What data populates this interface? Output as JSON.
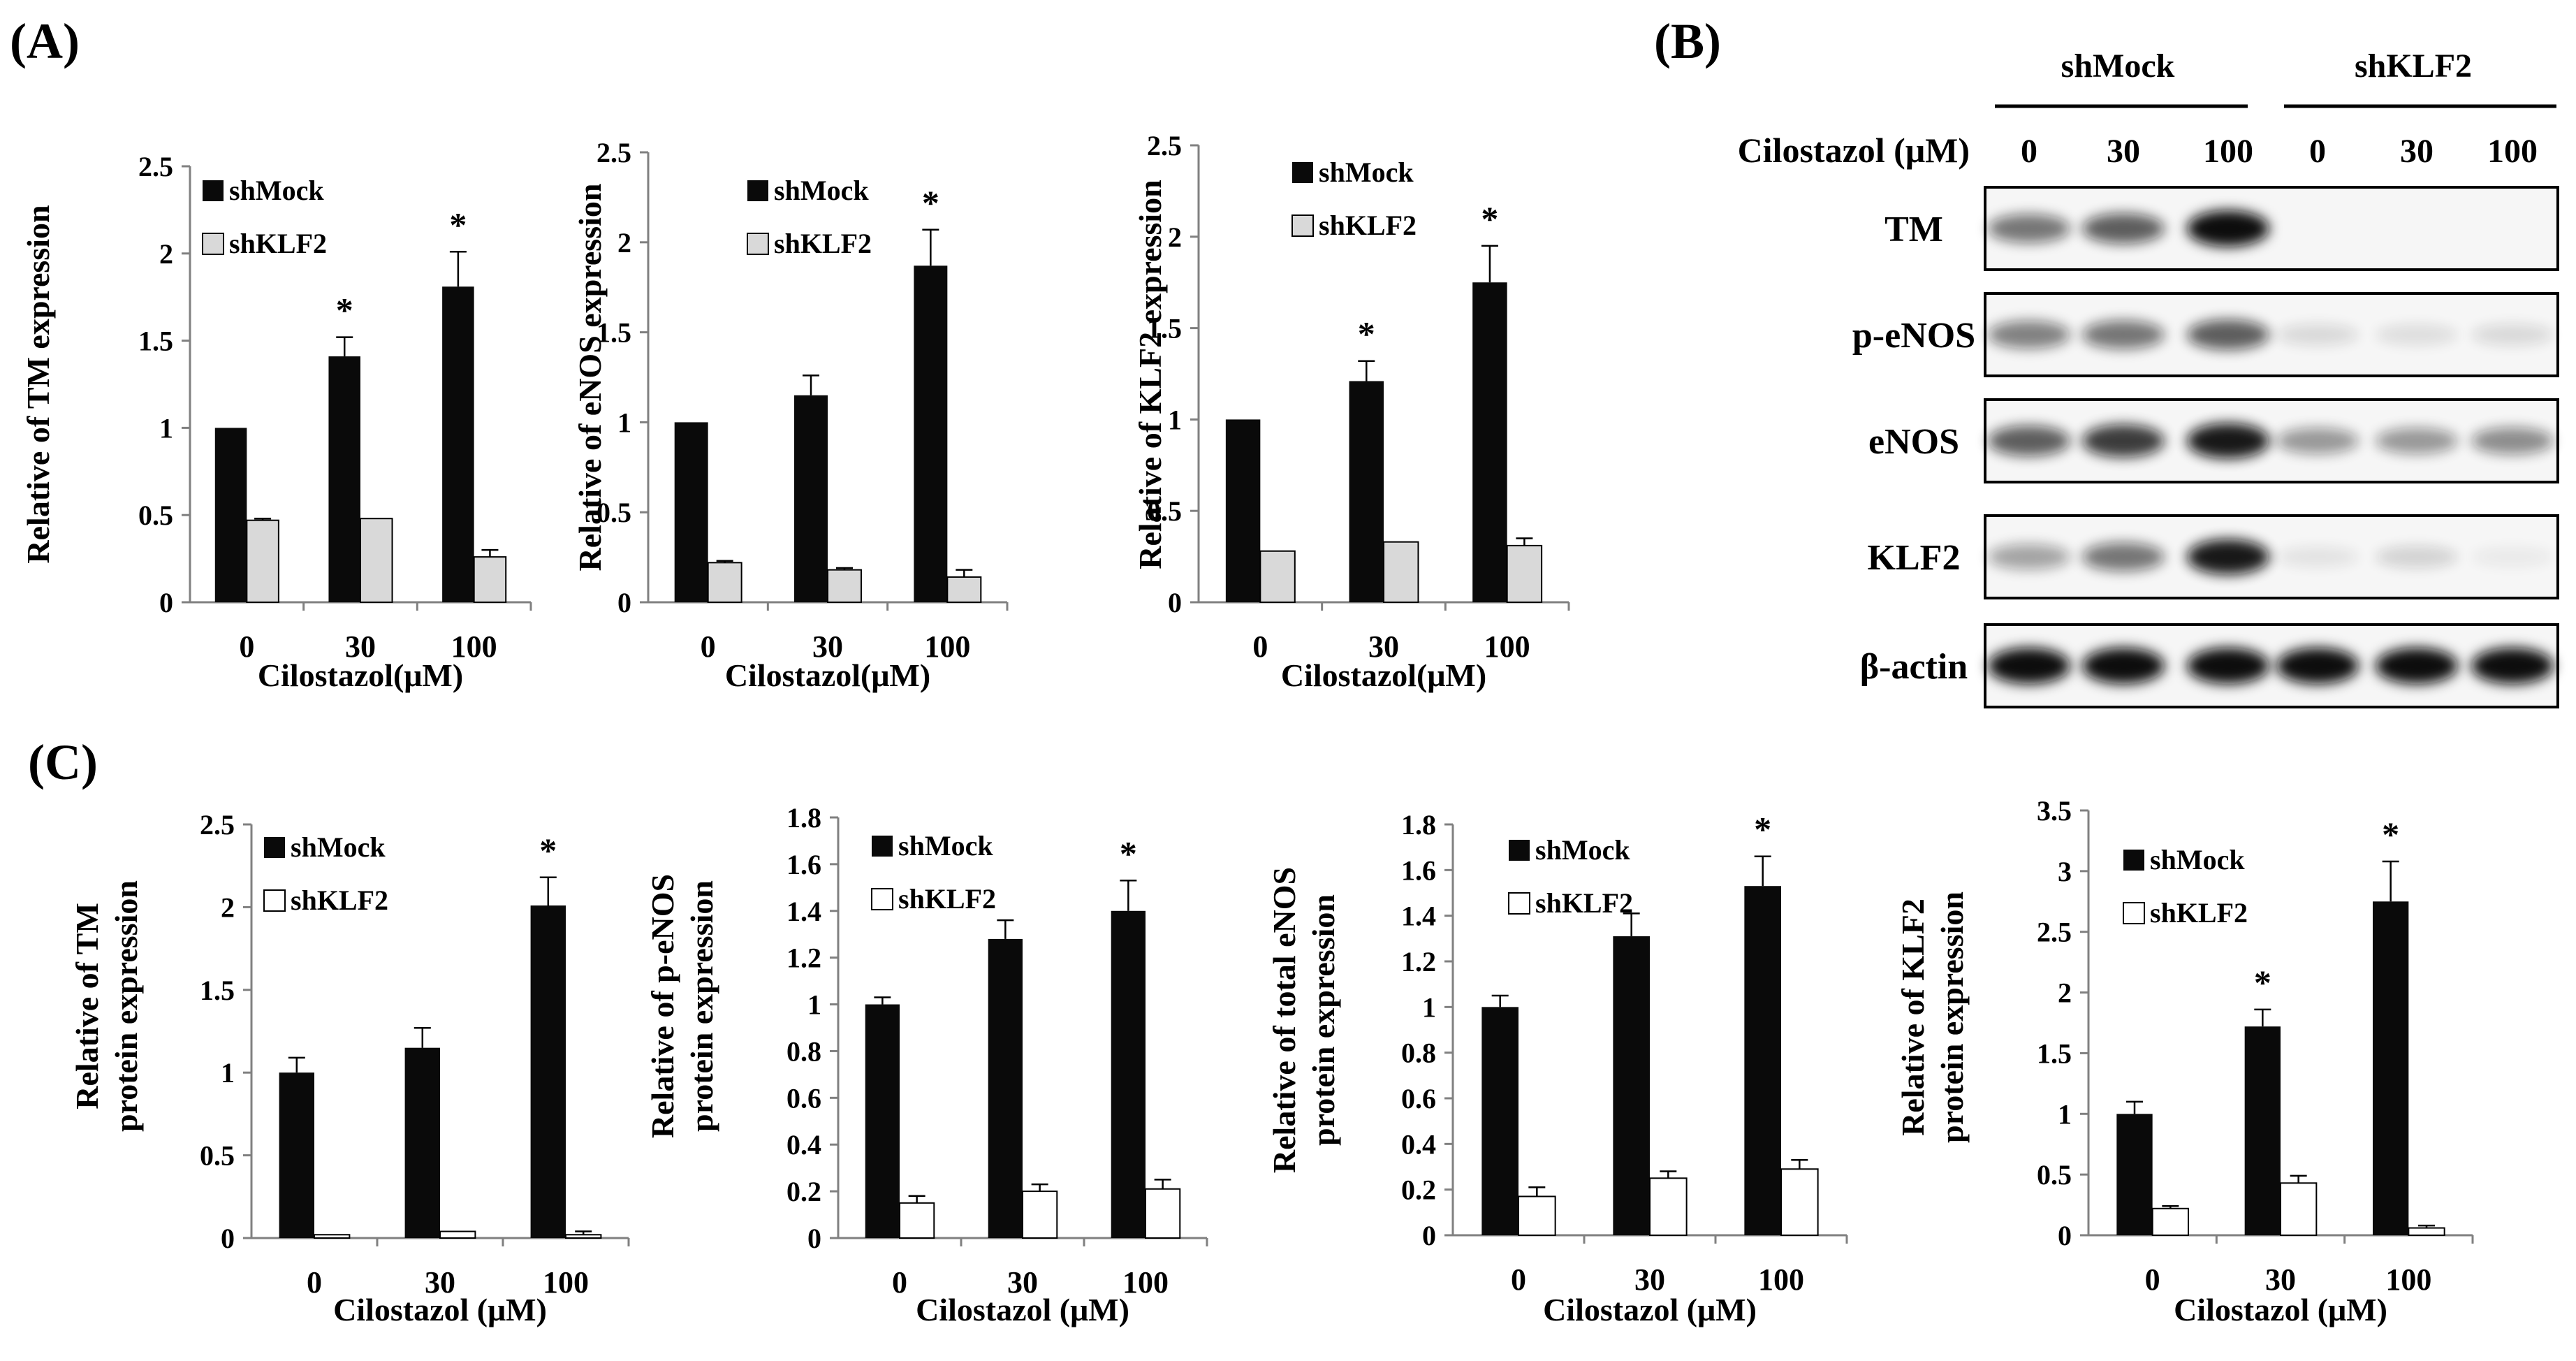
{
  "panels": {
    "A": "(A)",
    "B": "(B)",
    "C": "(C)"
  },
  "colors": {
    "shMock": "#0a0a0a",
    "shKLF2_A": "#d9d9d9",
    "shKLF2_C": "#ffffff",
    "axis": "#808080"
  },
  "chart_data": [
    {
      "type": "bar",
      "panel": "A",
      "categories": [
        "0",
        "30",
        "100"
      ],
      "series": [
        {
          "name": "shMock",
          "values": [
            1.0,
            1.41,
            1.81
          ],
          "errors": [
            0.0,
            0.11,
            0.2
          ]
        },
        {
          "name": "shKLF2",
          "values": [
            0.47,
            0.48,
            0.26
          ],
          "errors": [
            0.01,
            0.0,
            0.04
          ]
        }
      ],
      "stars": [
        null,
        "*",
        "*"
      ],
      "ylabel": "Relative of TM expression",
      "xlabel": "Cilostazol(μM)",
      "ylim": [
        0,
        2.5
      ],
      "ticks": [
        "0",
        "0.5",
        "1",
        "1.5",
        "2",
        "2.5"
      ],
      "legend": "top-left"
    },
    {
      "type": "bar",
      "panel": "A",
      "categories": [
        "0",
        "30",
        "100"
      ],
      "series": [
        {
          "name": "shMock",
          "values": [
            1.0,
            1.15,
            1.87
          ],
          "errors": [
            0.0,
            0.11,
            0.2
          ]
        },
        {
          "name": "shKLF2",
          "values": [
            0.22,
            0.18,
            0.14
          ],
          "errors": [
            0.01,
            0.01,
            0.04
          ]
        }
      ],
      "stars": [
        null,
        null,
        "*"
      ],
      "ylabel": "Relative of eNOS expression",
      "xlabel": "Cilostazol(μM)",
      "ylim": [
        0,
        2.5
      ],
      "ticks": [
        "0",
        "0.5",
        "1",
        "1.5",
        "2",
        "2.5"
      ],
      "legend": "top-left"
    },
    {
      "type": "bar",
      "panel": "A",
      "categories": [
        "0",
        "30",
        "100"
      ],
      "series": [
        {
          "name": "shMock",
          "values": [
            1.0,
            1.21,
            1.75
          ],
          "errors": [
            0.0,
            0.11,
            0.2
          ]
        },
        {
          "name": "shKLF2",
          "values": [
            0.28,
            0.33,
            0.31
          ],
          "errors": [
            0.0,
            0.0,
            0.04
          ]
        }
      ],
      "stars": [
        null,
        "*",
        "*"
      ],
      "ylabel": "Relative of KLF2 expression",
      "xlabel": "Cilostazol(μM)",
      "ylim": [
        0,
        2.5
      ],
      "ticks": [
        "0",
        "0.5",
        "1",
        "1.5",
        "2",
        "2.5"
      ],
      "legend": "top-left"
    },
    {
      "type": "bar",
      "panel": "C",
      "categories": [
        "0",
        "30",
        "100"
      ],
      "series": [
        {
          "name": "shMock",
          "values": [
            1.0,
            1.15,
            2.01
          ],
          "errors": [
            0.09,
            0.12,
            0.17
          ]
        },
        {
          "name": "shKLF2",
          "values": [
            0.02,
            0.04,
            0.02
          ],
          "errors": [
            0.0,
            0.0,
            0.02
          ]
        }
      ],
      "stars": [
        null,
        null,
        "*"
      ],
      "ylabel": "Relative of TM protein expression",
      "xlabel": "Cilostazol (μM)",
      "ylim": [
        0,
        2.5
      ],
      "ticks": [
        "0",
        "0.5",
        "1",
        "1.5",
        "2",
        "2.5"
      ],
      "legend": "top-left"
    },
    {
      "type": "bar",
      "panel": "C",
      "categories": [
        "0",
        "30",
        "100"
      ],
      "series": [
        {
          "name": "shMock",
          "values": [
            1.0,
            1.28,
            1.4
          ],
          "errors": [
            0.03,
            0.08,
            0.13
          ]
        },
        {
          "name": "shKLF2",
          "values": [
            0.15,
            0.2,
            0.21
          ],
          "errors": [
            0.03,
            0.03,
            0.04
          ]
        }
      ],
      "stars": [
        null,
        null,
        "*"
      ],
      "ylabel": "Relative of p-eNOS protein expression",
      "xlabel": "Cilostazol (μM)",
      "ylim": [
        0,
        1.8
      ],
      "ticks": [
        "0",
        "0.2",
        "0.4",
        "0.6",
        "0.8",
        "1",
        "1.2",
        "1.4",
        "1.6",
        "1.8"
      ],
      "legend": "top-left"
    },
    {
      "type": "bar",
      "panel": "C",
      "categories": [
        "0",
        "30",
        "100"
      ],
      "series": [
        {
          "name": "shMock",
          "values": [
            1.0,
            1.31,
            1.53
          ],
          "errors": [
            0.05,
            0.1,
            0.13
          ]
        },
        {
          "name": "shKLF2",
          "values": [
            0.17,
            0.25,
            0.29
          ],
          "errors": [
            0.04,
            0.03,
            0.04
          ]
        }
      ],
      "stars": [
        null,
        null,
        "*"
      ],
      "ylabel": "Relative of total eNOS protein expression",
      "xlabel": "Cilostazol (μM)",
      "ylim": [
        0,
        1.8
      ],
      "ticks": [
        "0",
        "0.2",
        "0.4",
        "0.6",
        "0.8",
        "1",
        "1.2",
        "1.4",
        "1.6",
        "1.8"
      ],
      "legend": "top-left"
    },
    {
      "type": "bar",
      "panel": "C",
      "categories": [
        "0",
        "30",
        "100"
      ],
      "series": [
        {
          "name": "shMock",
          "values": [
            1.0,
            1.72,
            2.75
          ],
          "errors": [
            0.1,
            0.14,
            0.33
          ]
        },
        {
          "name": "shKLF2",
          "values": [
            0.22,
            0.43,
            0.06
          ],
          "errors": [
            0.02,
            0.06,
            0.02
          ]
        }
      ],
      "stars": [
        null,
        "*",
        "*"
      ],
      "ylabel": "Relative of KLF2 protein expression",
      "xlabel": "Cilostazol (μM)",
      "ylim": [
        0,
        3.5
      ],
      "ticks": [
        "0",
        "0.5",
        "1",
        "1.5",
        "2",
        "2.5",
        "3",
        "3.5"
      ],
      "legend": "top-left"
    }
  ],
  "blot": {
    "groups": [
      "shMock",
      "shKLF2"
    ],
    "condition_label": "Cilostazol (μM)",
    "doses": [
      "0",
      "30",
      "100",
      "0",
      "30",
      "100"
    ],
    "rows": [
      {
        "name": "TM",
        "intensity": [
          0.55,
          0.65,
          1.0,
          0.0,
          0.0,
          0.0
        ]
      },
      {
        "name": "p-eNOS",
        "intensity": [
          0.5,
          0.55,
          0.65,
          0.12,
          0.1,
          0.12
        ]
      },
      {
        "name": "eNOS",
        "intensity": [
          0.65,
          0.8,
          0.95,
          0.4,
          0.4,
          0.45
        ]
      },
      {
        "name": "KLF2",
        "intensity": [
          0.35,
          0.55,
          0.95,
          0.08,
          0.15,
          0.05
        ]
      },
      {
        "name": "β-actin",
        "intensity": [
          1.0,
          1.0,
          1.0,
          1.0,
          1.0,
          1.0
        ]
      }
    ]
  }
}
